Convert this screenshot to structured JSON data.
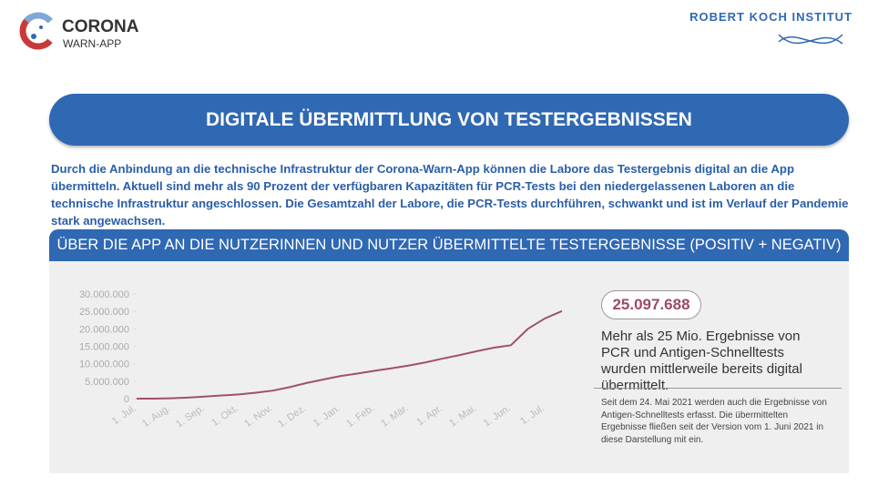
{
  "header": {
    "logo_line1": "CORONA",
    "logo_line2": "WARN-APP",
    "institute": "ROBERT KOCH INSTITUT"
  },
  "banner_title": "DIGITALE ÜBERMITTLUNG VON TESTERGEBNISSEN",
  "intro": "Durch die Anbindung an die technische Infrastruktur der Corona-Warn-App können die Labore das Testergebnis digital an die App übermitteln. Aktuell sind mehr als 90 Prozent der verfügbaren Kapazitäten für PCR-Tests bei den niedergelassenen Laboren an die technische Infrastruktur angeschlossen.  Die Gesamtzahl der Labore, die PCR-Tests durchführen, schwankt und ist im Verlauf der Pandemie stark angewachsen.",
  "chart_data": {
    "type": "line",
    "title": "ÜBER DIE APP AN DIE NUTZERINNEN UND NUTZER ÜBERMITTELTE TESTERGEBNISSE (POSITIV + NEGATIV)",
    "categories": [
      "1. Jul.",
      null,
      "1. Aug.",
      null,
      "1. Sep.",
      null,
      "1. Okt.",
      null,
      "1. Nov.",
      null,
      "1. Dez.",
      null,
      "1. Jan.",
      null,
      "1. Feb.",
      null,
      "1. Mär.",
      null,
      "1. Apr.",
      null,
      "1. Mai.",
      null,
      "1. Jun.",
      null,
      "1. Jul.",
      null
    ],
    "values": [
      0,
      0,
      100000,
      300000,
      600000,
      900000,
      1200000,
      1700000,
      2300000,
      3300000,
      4500000,
      5500000,
      6500000,
      7200000,
      8000000,
      8700000,
      9500000,
      10400000,
      11500000,
      12500000,
      13600000,
      14600000,
      15300000,
      20000000,
      23000000,
      25097688
    ],
    "color": "#a0506e",
    "ylim": [
      0,
      30000000
    ],
    "yticks": [
      0,
      {
        "value": 5000000,
        "label": "5.000.000"
      },
      {
        "value": 10000000,
        "label": "10.000.000"
      },
      {
        "value": 15000000,
        "label": "15.000.000"
      },
      {
        "value": 20000000,
        "label": "20.000.000"
      },
      {
        "value": 25000000,
        "label": "25.000.000"
      },
      {
        "value": 30000000,
        "label": "30.000.000"
      }
    ]
  },
  "highlight": {
    "number": "25.097.688",
    "text": "Mehr als 25 Mio. Ergebnisse von PCR und Antigen-Schnelltests wurden mittlerweile bereits digital übermittelt.",
    "note": "Seit dem 24. Mai 2021 werden auch die Ergebnisse von Antigen-Schnelltests erfasst. Die übermittelten Ergebnisse fließen seit der Version vom 1. Juni 2021 in diese Darstellung mit ein."
  }
}
